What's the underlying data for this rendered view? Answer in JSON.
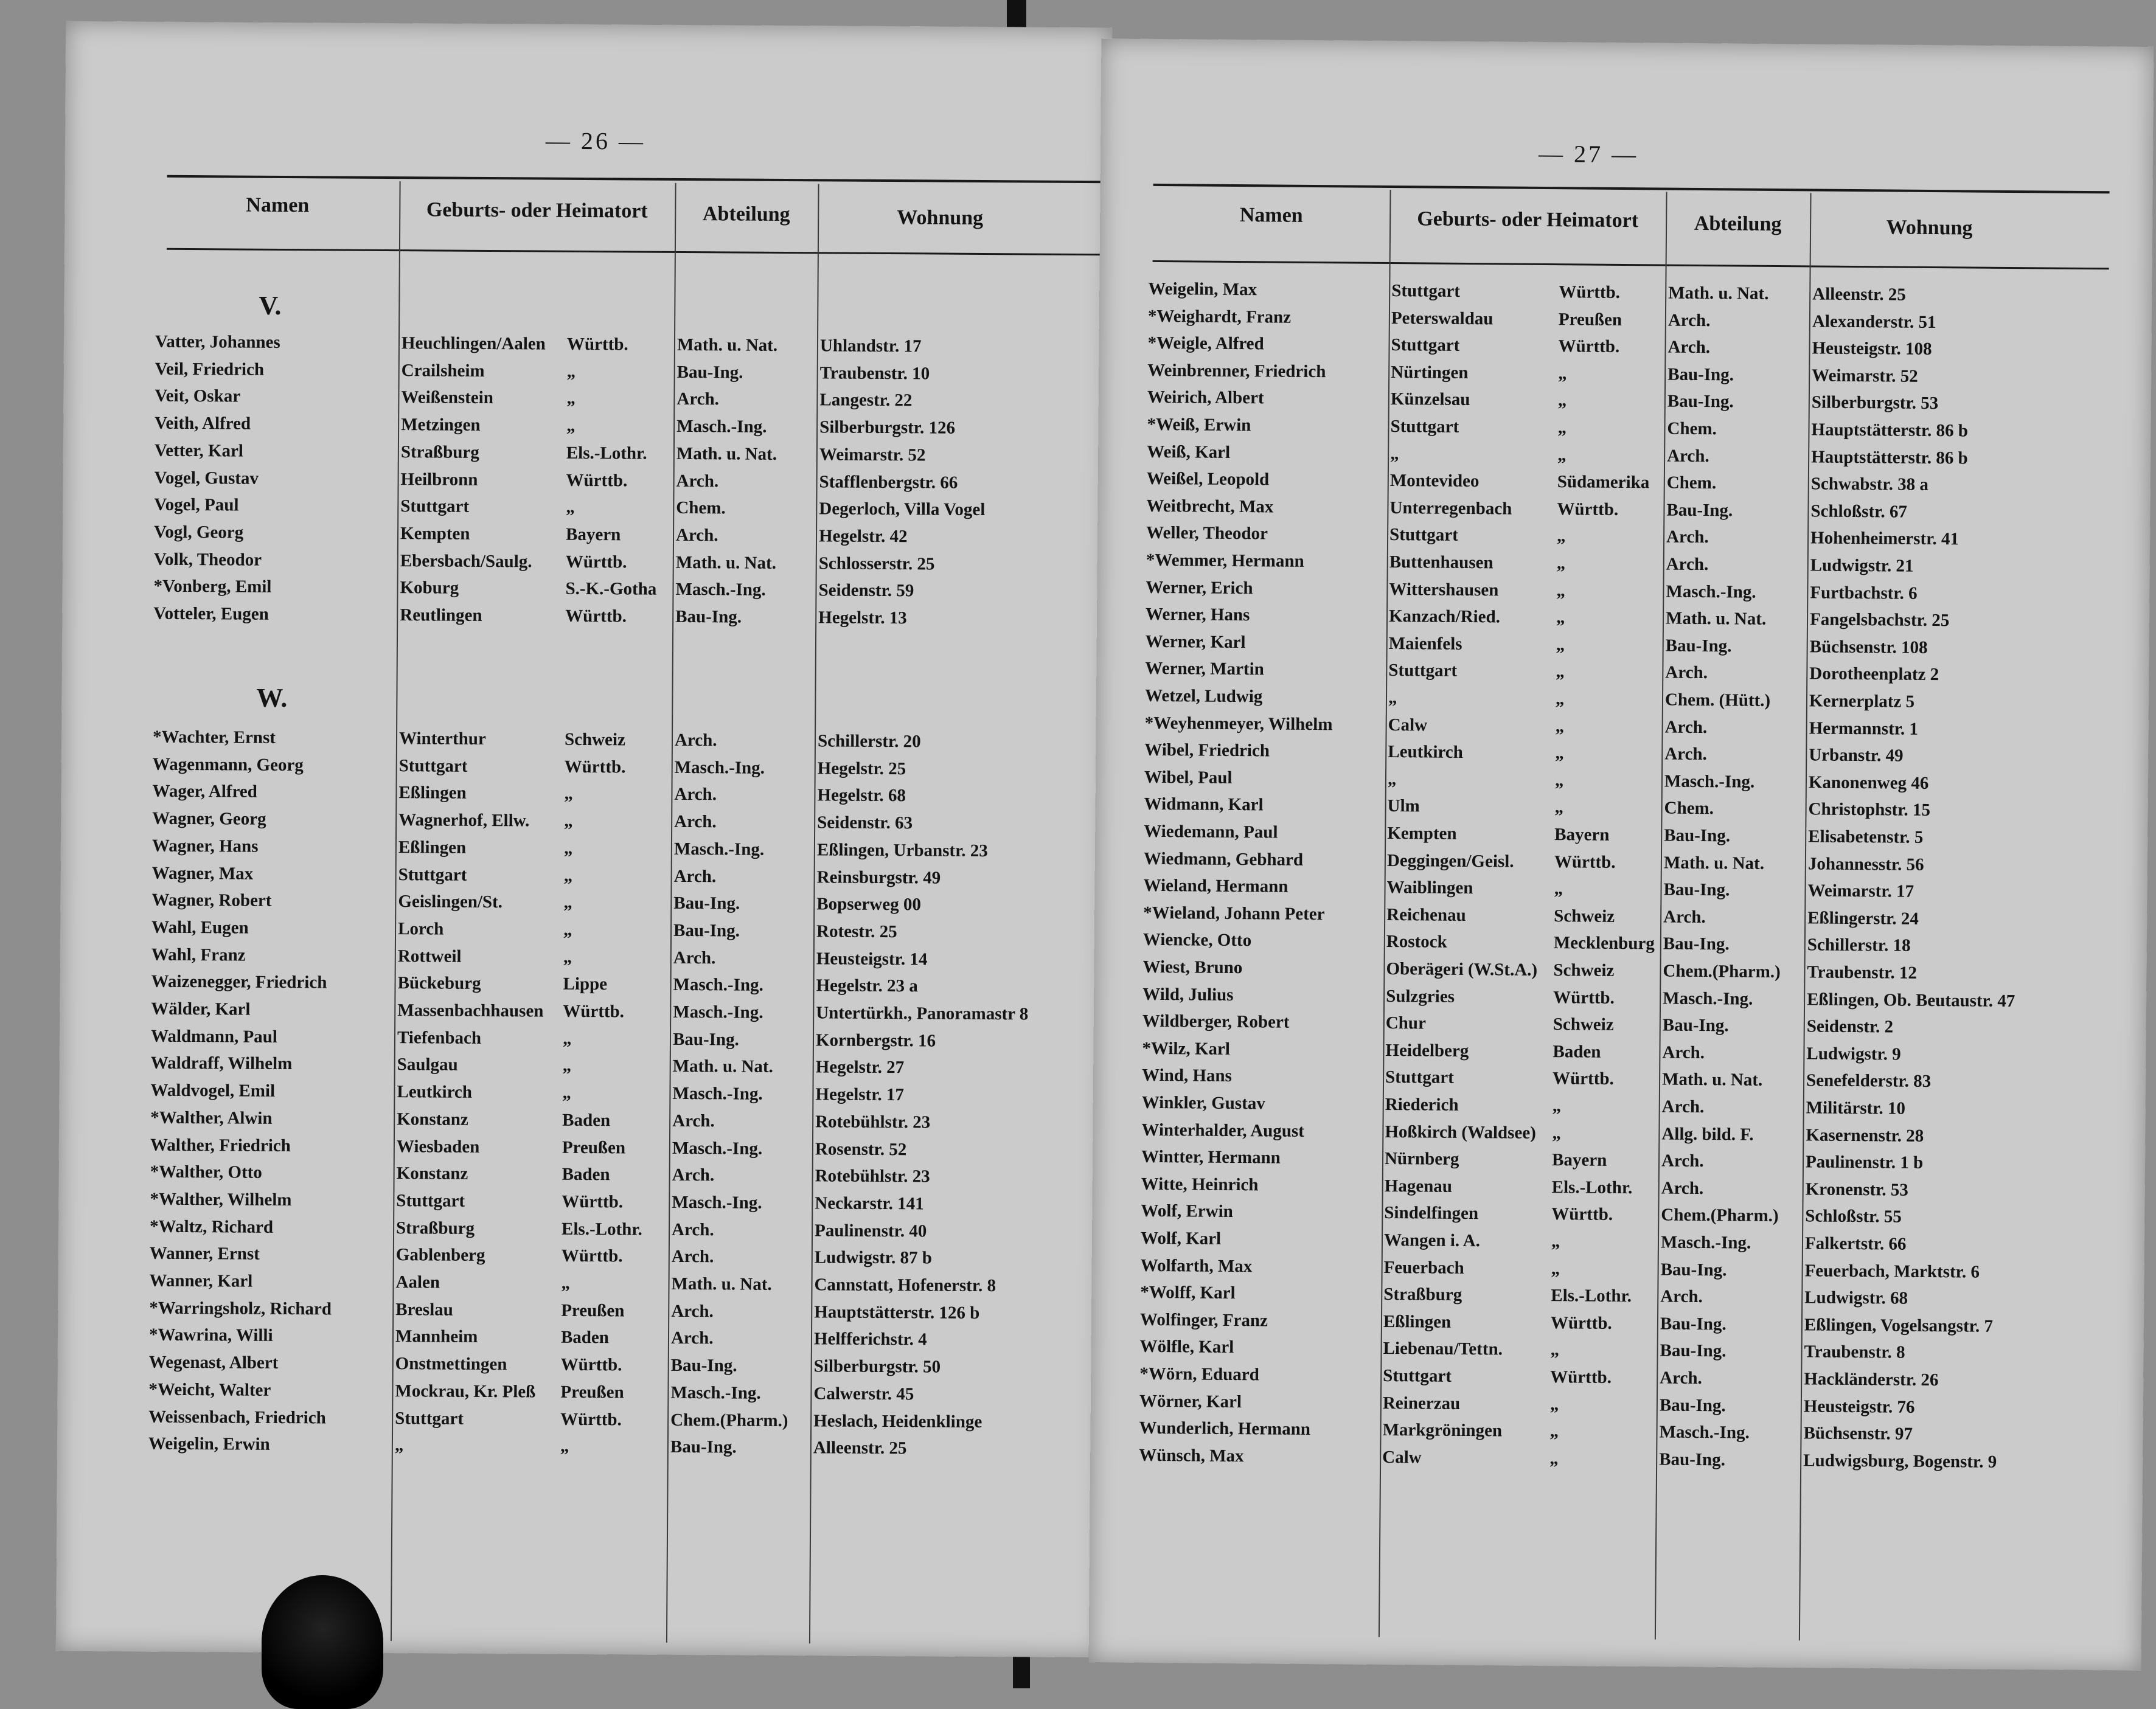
{
  "columns": {
    "name": "Namen",
    "place": "Geburts- oder Heimatort",
    "dept": "Abteilung",
    "address": "Wohnung"
  },
  "left_page": {
    "page_number": "— 26 —",
    "sections": [
      {
        "letter": "V.",
        "rows": [
          {
            "name": "Vatter, Johannes",
            "place": "Heuchlingen/Aalen",
            "state": "Württb.",
            "dept": "Math. u. Nat.",
            "address": "Uhlandstr. 17"
          },
          {
            "name": "Veil, Friedrich",
            "place": "Crailsheim",
            "state": "„",
            "dept": "Bau-Ing.",
            "address": "Traubenstr. 10"
          },
          {
            "name": "Veit, Oskar",
            "place": "Weißenstein",
            "state": "„",
            "dept": "Arch.",
            "address": "Langestr. 22"
          },
          {
            "name": "Veith, Alfred",
            "place": "Metzingen",
            "state": "„",
            "dept": "Masch.-Ing.",
            "address": "Silberburgstr. 126"
          },
          {
            "name": "Vetter, Karl",
            "place": "Straßburg",
            "state": "Els.-Lothr.",
            "dept": "Math. u. Nat.",
            "address": "Weimarstr. 52"
          },
          {
            "name": "Vogel, Gustav",
            "place": "Heilbronn",
            "state": "Württb.",
            "dept": "Arch.",
            "address": "Stafflenbergstr. 66"
          },
          {
            "name": "Vogel, Paul",
            "place": "Stuttgart",
            "state": "„",
            "dept": "Chem.",
            "address": "Degerloch, Villa Vogel"
          },
          {
            "name": "Vogl, Georg",
            "place": "Kempten",
            "state": "Bayern",
            "dept": "Arch.",
            "address": "Hegelstr. 42"
          },
          {
            "name": "Volk, Theodor",
            "place": "Ebersbach/Saulg.",
            "state": "Württb.",
            "dept": "Math. u. Nat.",
            "address": "Schlosserstr. 25"
          },
          {
            "name": "*Vonberg, Emil",
            "place": "Koburg",
            "state": "S.-K.-Gotha",
            "dept": "Masch.-Ing.",
            "address": "Seidenstr. 59"
          },
          {
            "name": "Votteler, Eugen",
            "place": "Reutlingen",
            "state": "Württb.",
            "dept": "Bau-Ing.",
            "address": "Hegelstr. 13"
          }
        ]
      },
      {
        "letter": "W.",
        "rows": [
          {
            "name": "*Wachter, Ernst",
            "place": "Winterthur",
            "state": "Schweiz",
            "dept": "Arch.",
            "address": "Schillerstr. 20"
          },
          {
            "name": "Wagenmann, Georg",
            "place": "Stuttgart",
            "state": "Württb.",
            "dept": "Masch.-Ing.",
            "address": "Hegelstr. 25"
          },
          {
            "name": "Wager, Alfred",
            "place": "Eßlingen",
            "state": "„",
            "dept": "Arch.",
            "address": "Hegelstr. 68"
          },
          {
            "name": "Wagner, Georg",
            "place": "Wagnerhof, Ellw.",
            "state": "„",
            "dept": "Arch.",
            "address": "Seidenstr. 63"
          },
          {
            "name": "Wagner, Hans",
            "place": "Eßlingen",
            "state": "„",
            "dept": "Masch.-Ing.",
            "address": "Eßlingen, Urbanstr. 23"
          },
          {
            "name": "Wagner, Max",
            "place": "Stuttgart",
            "state": "„",
            "dept": "Arch.",
            "address": "Reinsburgstr. 49"
          },
          {
            "name": "Wagner, Robert",
            "place": "Geislingen/St.",
            "state": "„",
            "dept": "Bau-Ing.",
            "address": "Bopserweg 00"
          },
          {
            "name": "Wahl, Eugen",
            "place": "Lorch",
            "state": "„",
            "dept": "Bau-Ing.",
            "address": "Rotestr. 25"
          },
          {
            "name": "Wahl, Franz",
            "place": "Rottweil",
            "state": "„",
            "dept": "Arch.",
            "address": "Heusteigstr. 14"
          },
          {
            "name": "Waizenegger, Friedrich",
            "place": "Bückeburg",
            "state": "Lippe",
            "dept": "Masch.-Ing.",
            "address": "Hegelstr. 23 a"
          },
          {
            "name": "Wälder, Karl",
            "place": "Massenbachhausen",
            "state": "Württb.",
            "dept": "Masch.-Ing.",
            "address": "Untertürkh., Panoramastr 8"
          },
          {
            "name": "Waldmann, Paul",
            "place": "Tiefenbach",
            "state": "„",
            "dept": "Bau-Ing.",
            "address": "Kornbergstr. 16"
          },
          {
            "name": "Waldraff, Wilhelm",
            "place": "Saulgau",
            "state": "„",
            "dept": "Math. u. Nat.",
            "address": "Hegelstr. 27"
          },
          {
            "name": "Waldvogel, Emil",
            "place": "Leutkirch",
            "state": "„",
            "dept": "Masch.-Ing.",
            "address": "Hegelstr. 17"
          },
          {
            "name": "*Walther, Alwin",
            "place": "Konstanz",
            "state": "Baden",
            "dept": "Arch.",
            "address": "Rotebühlstr. 23"
          },
          {
            "name": "Walther, Friedrich",
            "place": "Wiesbaden",
            "state": "Preußen",
            "dept": "Masch.-Ing.",
            "address": "Rosenstr. 52"
          },
          {
            "name": "*Walther, Otto",
            "place": "Konstanz",
            "state": "Baden",
            "dept": "Arch.",
            "address": "Rotebühlstr. 23"
          },
          {
            "name": "*Walther, Wilhelm",
            "place": "Stuttgart",
            "state": "Württb.",
            "dept": "Masch.-Ing.",
            "address": "Neckarstr. 141"
          },
          {
            "name": "*Waltz, Richard",
            "place": "Straßburg",
            "state": "Els.-Lothr.",
            "dept": "Arch.",
            "address": "Paulinenstr. 40"
          },
          {
            "name": "Wanner, Ernst",
            "place": "Gablenberg",
            "state": "Württb.",
            "dept": "Arch.",
            "address": "Ludwigstr. 87 b"
          },
          {
            "name": "Wanner, Karl",
            "place": "Aalen",
            "state": "„",
            "dept": "Math. u. Nat.",
            "address": "Cannstatt, Hofenerstr. 8"
          },
          {
            "name": "*Warringsholz, Richard",
            "place": "Breslau",
            "state": "Preußen",
            "dept": "Arch.",
            "address": "Hauptstätterstr. 126 b"
          },
          {
            "name": "*Wawrina, Willi",
            "place": "Mannheim",
            "state": "Baden",
            "dept": "Arch.",
            "address": "Helfferichstr. 4"
          },
          {
            "name": "Wegenast, Albert",
            "place": "Onstmettingen",
            "state": "Württb.",
            "dept": "Bau-Ing.",
            "address": "Silberburgstr. 50"
          },
          {
            "name": "*Weicht, Walter",
            "place": "Mockrau, Kr. Pleß",
            "state": "Preußen",
            "dept": "Masch.-Ing.",
            "address": "Calwerstr. 45"
          },
          {
            "name": "Weissenbach, Friedrich",
            "place": "Stuttgart",
            "state": "Württb.",
            "dept": "Chem.(Pharm.)",
            "address": "Heslach, Heidenklinge"
          },
          {
            "name": "Weigelin, Erwin",
            "place": "„",
            "state": "„",
            "dept": "Bau-Ing.",
            "address": "Alleenstr. 25"
          }
        ]
      }
    ]
  },
  "right_page": {
    "page_number": "— 27 —",
    "rows": [
      {
        "name": "Weigelin, Max",
        "place": "Stuttgart",
        "state": "Württb.",
        "dept": "Math. u. Nat.",
        "address": "Alleenstr. 25"
      },
      {
        "name": "*Weighardt, Franz",
        "place": "Peterswaldau",
        "state": "Preußen",
        "dept": "Arch.",
        "address": "Alexanderstr. 51"
      },
      {
        "name": "*Weigle, Alfred",
        "place": "Stuttgart",
        "state": "Württb.",
        "dept": "Arch.",
        "address": "Heusteigstr. 108"
      },
      {
        "name": "Weinbrenner, Friedrich",
        "place": "Nürtingen",
        "state": "„",
        "dept": "Bau-Ing.",
        "address": "Weimarstr. 52"
      },
      {
        "name": "Weirich, Albert",
        "place": "Künzelsau",
        "state": "„",
        "dept": "Bau-Ing.",
        "address": "Silberburgstr. 53"
      },
      {
        "name": "*Weiß, Erwin",
        "place": "Stuttgart",
        "state": "„",
        "dept": "Chem.",
        "address": "Hauptstätterstr. 86 b"
      },
      {
        "name": "Weiß, Karl",
        "place": "„",
        "state": "„",
        "dept": "Arch.",
        "address": "Hauptstätterstr. 86 b"
      },
      {
        "name": "Weißel, Leopold",
        "place": "Montevideo",
        "state": "Südamerika",
        "dept": "Chem.",
        "address": "Schwabstr. 38 a"
      },
      {
        "name": "Weitbrecht, Max",
        "place": "Unterregenbach",
        "state": "Württb.",
        "dept": "Bau-Ing.",
        "address": "Schloßstr. 67"
      },
      {
        "name": "Weller, Theodor",
        "place": "Stuttgart",
        "state": "„",
        "dept": "Arch.",
        "address": "Hohenheimerstr. 41"
      },
      {
        "name": "*Wemmer, Hermann",
        "place": "Buttenhausen",
        "state": "„",
        "dept": "Arch.",
        "address": "Ludwigstr. 21"
      },
      {
        "name": "Werner, Erich",
        "place": "Wittershausen",
        "state": "„",
        "dept": "Masch.-Ing.",
        "address": "Furtbachstr. 6"
      },
      {
        "name": "Werner, Hans",
        "place": "Kanzach/Ried.",
        "state": "„",
        "dept": "Math. u. Nat.",
        "address": "Fangelsbachstr. 25"
      },
      {
        "name": "Werner, Karl",
        "place": "Maienfels",
        "state": "„",
        "dept": "Bau-Ing.",
        "address": "Büchsenstr. 108"
      },
      {
        "name": "Werner, Martin",
        "place": "Stuttgart",
        "state": "„",
        "dept": "Arch.",
        "address": "Dorotheenplatz 2"
      },
      {
        "name": "Wetzel, Ludwig",
        "place": "„",
        "state": "„",
        "dept": "Chem. (Hütt.)",
        "address": "Kernerplatz 5"
      },
      {
        "name": "*Weyhenmeyer, Wilhelm",
        "place": "Calw",
        "state": "„",
        "dept": "Arch.",
        "address": "Hermannstr. 1"
      },
      {
        "name": "Wibel, Friedrich",
        "place": "Leutkirch",
        "state": "„",
        "dept": "Arch.",
        "address": "Urbanstr. 49"
      },
      {
        "name": "Wibel, Paul",
        "place": "„",
        "state": "„",
        "dept": "Masch.-Ing.",
        "address": "Kanonenweg 46"
      },
      {
        "name": "Widmann, Karl",
        "place": "Ulm",
        "state": "„",
        "dept": "Chem.",
        "address": "Christophstr. 15"
      },
      {
        "name": "Wiedemann, Paul",
        "place": "Kempten",
        "state": "Bayern",
        "dept": "Bau-Ing.",
        "address": "Elisabetenstr. 5"
      },
      {
        "name": "Wiedmann, Gebhard",
        "place": "Deggingen/Geisl.",
        "state": "Württb.",
        "dept": "Math. u. Nat.",
        "address": "Johannesstr. 56"
      },
      {
        "name": "Wieland, Hermann",
        "place": "Waiblingen",
        "state": "„",
        "dept": "Bau-Ing.",
        "address": "Weimarstr. 17"
      },
      {
        "name": "*Wieland, Johann Peter",
        "place": "Reichenau",
        "state": "Schweiz",
        "dept": "Arch.",
        "address": "Eßlingerstr. 24"
      },
      {
        "name": "Wiencke, Otto",
        "place": "Rostock",
        "state": "Mecklenburg",
        "dept": "Bau-Ing.",
        "address": "Schillerstr. 18"
      },
      {
        "name": "Wiest, Bruno",
        "place": "Oberägeri (W.St.A.)",
        "state": "Schweiz",
        "dept": "Chem.(Pharm.)",
        "address": "Traubenstr. 12"
      },
      {
        "name": "Wild, Julius",
        "place": "Sulzgries",
        "state": "Württb.",
        "dept": "Masch.-Ing.",
        "address": "Eßlingen, Ob. Beutaustr. 47"
      },
      {
        "name": "Wildberger, Robert",
        "place": "Chur",
        "state": "Schweiz",
        "dept": "Bau-Ing.",
        "address": "Seidenstr. 2"
      },
      {
        "name": "*Wilz, Karl",
        "place": "Heidelberg",
        "state": "Baden",
        "dept": "Arch.",
        "address": "Ludwigstr. 9"
      },
      {
        "name": "Wind, Hans",
        "place": "Stuttgart",
        "state": "Württb.",
        "dept": "Math. u. Nat.",
        "address": "Senefelderstr. 83"
      },
      {
        "name": "Winkler, Gustav",
        "place": "Riederich",
        "state": "„",
        "dept": "Arch.",
        "address": "Militärstr. 10"
      },
      {
        "name": "Winterhalder, August",
        "place": "Hoßkirch (Waldsee)",
        "state": "„",
        "dept": "Allg. bild. F.",
        "address": "Kasernenstr. 28"
      },
      {
        "name": "Wintter, Hermann",
        "place": "Nürnberg",
        "state": "Bayern",
        "dept": "Arch.",
        "address": "Paulinenstr. 1 b"
      },
      {
        "name": "Witte, Heinrich",
        "place": "Hagenau",
        "state": "Els.-Lothr.",
        "dept": "Arch.",
        "address": "Kronenstr. 53"
      },
      {
        "name": "Wolf, Erwin",
        "place": "Sindelfingen",
        "state": "Württb.",
        "dept": "Chem.(Pharm.)",
        "address": "Schloßstr. 55"
      },
      {
        "name": "Wolf, Karl",
        "place": "Wangen i. A.",
        "state": "„",
        "dept": "Masch.-Ing.",
        "address": "Falkertstr. 66"
      },
      {
        "name": "Wolfarth, Max",
        "place": "Feuerbach",
        "state": "„",
        "dept": "Bau-Ing.",
        "address": "Feuerbach, Marktstr. 6"
      },
      {
        "name": "*Wolff, Karl",
        "place": "Straßburg",
        "state": "Els.-Lothr.",
        "dept": "Arch.",
        "address": "Ludwigstr. 68"
      },
      {
        "name": "Wolfinger, Franz",
        "place": "Eßlingen",
        "state": "Württb.",
        "dept": "Bau-Ing.",
        "address": "Eßlingen, Vogelsangstr. 7"
      },
      {
        "name": "Wölfle, Karl",
        "place": "Liebenau/Tettn.",
        "state": "„",
        "dept": "Bau-Ing.",
        "address": "Traubenstr. 8"
      },
      {
        "name": "*Wörn, Eduard",
        "place": "Stuttgart",
        "state": "Württb.",
        "dept": "Arch.",
        "address": "Hackländerstr. 26"
      },
      {
        "name": "Wörner, Karl",
        "place": "Reinerzau",
        "state": "„",
        "dept": "Bau-Ing.",
        "address": "Heusteigstr. 76"
      },
      {
        "name": "Wunderlich, Hermann",
        "place": "Markgröningen",
        "state": "„",
        "dept": "Masch.-Ing.",
        "address": "Büchsenstr. 97"
      },
      {
        "name": "Wünsch, Max",
        "place": "Calw",
        "state": "„",
        "dept": "Bau-Ing.",
        "address": "Ludwigsburg, Bogenstr. 9"
      }
    ]
  }
}
